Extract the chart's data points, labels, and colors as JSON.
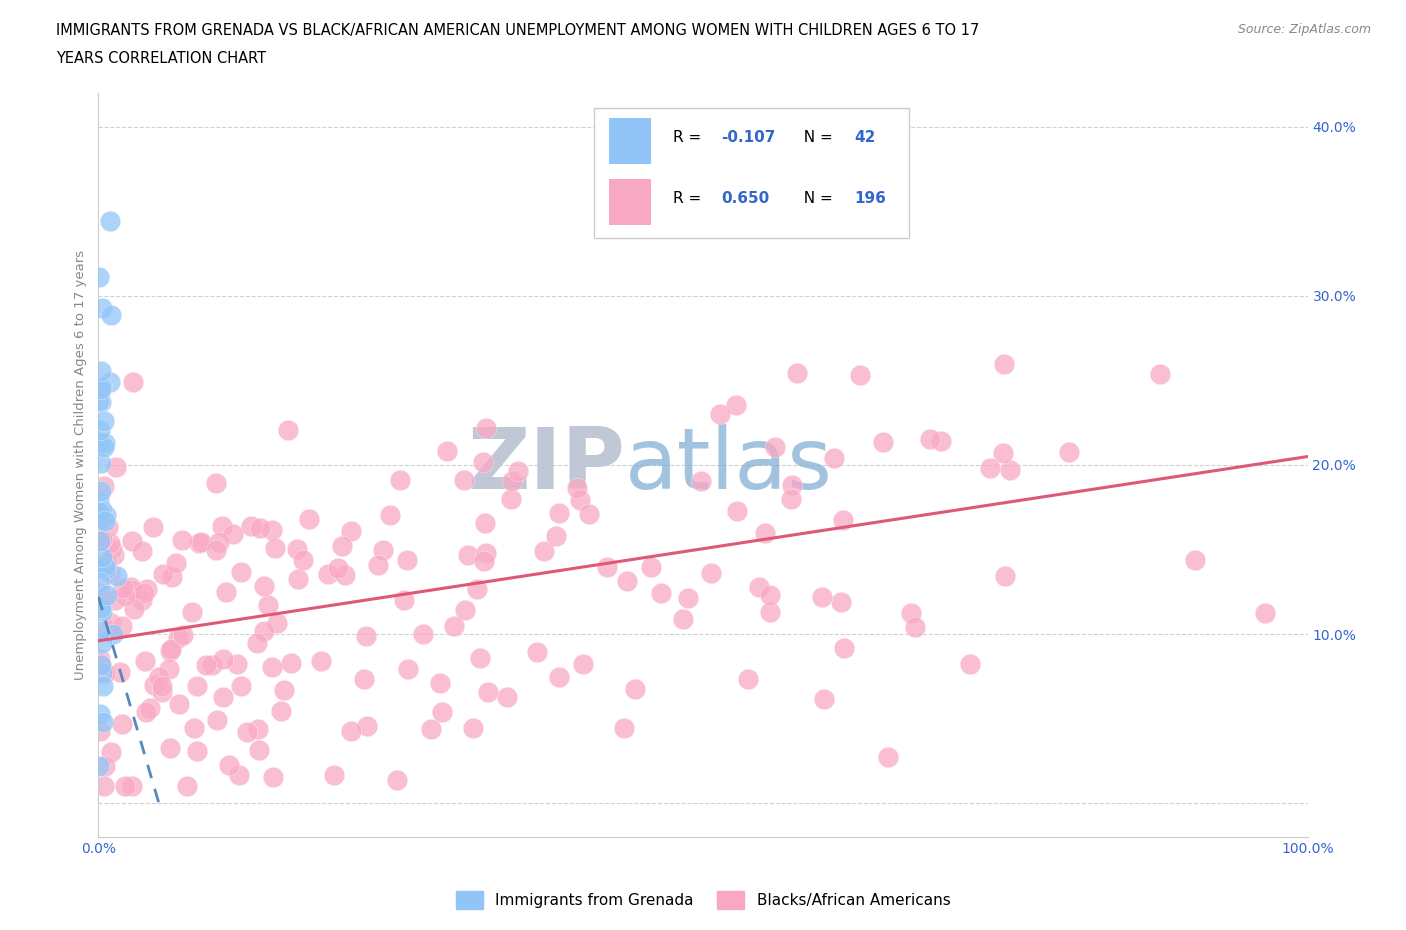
{
  "title_line1": "IMMIGRANTS FROM GRENADA VS BLACK/AFRICAN AMERICAN UNEMPLOYMENT AMONG WOMEN WITH CHILDREN AGES 6 TO 17",
  "title_line2": "YEARS CORRELATION CHART",
  "source_text": "Source: ZipAtlas.com",
  "ylabel": "Unemployment Among Women with Children Ages 6 to 17 years",
  "xlim": [
    0.0,
    1.0
  ],
  "ylim": [
    -0.02,
    0.42
  ],
  "xtick_positions": [
    0.0,
    0.1,
    0.2,
    0.3,
    0.4,
    0.5,
    0.6,
    0.7,
    0.8,
    0.9,
    1.0
  ],
  "ytick_positions": [
    0.0,
    0.1,
    0.2,
    0.3,
    0.4
  ],
  "ytick_labels": [
    "",
    "10.0%",
    "20.0%",
    "30.0%",
    "40.0%"
  ],
  "legend_R1": "-0.107",
  "legend_N1": "42",
  "legend_R2": "0.650",
  "legend_N2": "196",
  "blue_color": "#92C5F7",
  "pink_color": "#F9A8C4",
  "trendline_blue_color": "#5588BB",
  "trendline_pink_color": "#E05878",
  "text_color_blue": "#3366CC",
  "watermark_zip_color": "#BFC8D4",
  "watermark_atlas_color": "#7BAAD4",
  "legend_label1": "Immigrants from Grenada",
  "legend_label2": "Blacks/African Americans",
  "pink_trendline_x0": 0.0,
  "pink_trendline_y0": 0.096,
  "pink_trendline_x1": 1.0,
  "pink_trendline_y1": 0.205,
  "blue_trendline_x0": 0.0,
  "blue_trendline_y0": 0.122,
  "blue_trendline_x1": 0.05,
  "blue_trendline_y1": 0.0
}
